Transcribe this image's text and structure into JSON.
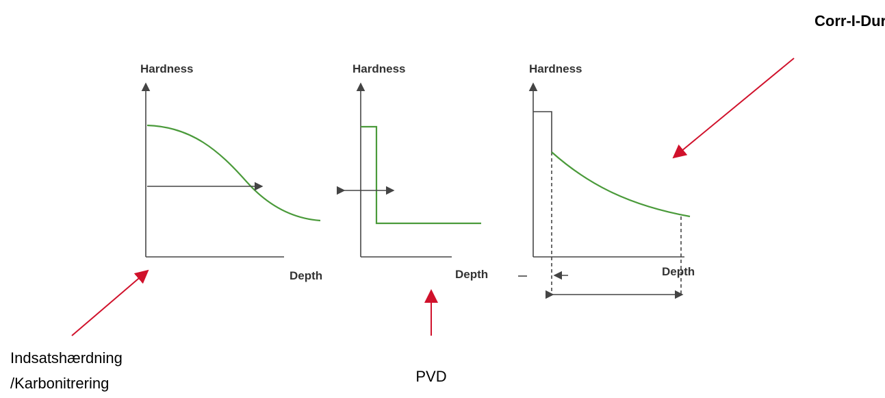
{
  "title": "Corr-I-Dur",
  "panels": [
    {
      "y_label": "Hardness",
      "x_label": "Depth"
    },
    {
      "y_label": "Hardness",
      "x_label": "Depth"
    },
    {
      "y_label": "Hardness",
      "x_label": "Depth"
    }
  ],
  "labels": {
    "case_hardening": [
      "Indsatshærdning",
      "/Karbonitrering"
    ],
    "pvd": "PVD"
  }
}
